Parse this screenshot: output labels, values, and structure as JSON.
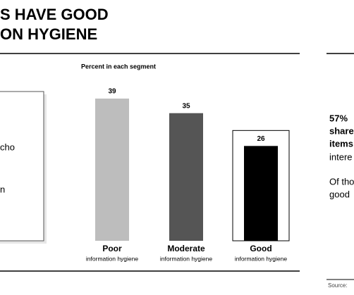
{
  "header": {
    "title_lines": [
      "S HAVE GOOD",
      "ON HYGIENE"
    ]
  },
  "left_panel": {
    "texts": [
      "cho",
      "n"
    ]
  },
  "chart_data": {
    "type": "bar",
    "subtitle": "Percent in each segment",
    "categories": [
      "Poor",
      "Moderate",
      "Good"
    ],
    "category_notes": [
      "information hygiene",
      "information hygiene",
      "information hygiene"
    ],
    "values": [
      39,
      35,
      26
    ],
    "colors": [
      "#bdbdbd",
      "#555555",
      "#000000"
    ],
    "highlight": "Good"
  },
  "sidebar": {
    "bold_lines": [
      "57%",
      "share",
      "items"
    ],
    "lines": [
      "intere",
      "Of tho",
      "good"
    ]
  },
  "footer": {
    "source": "Source:"
  }
}
